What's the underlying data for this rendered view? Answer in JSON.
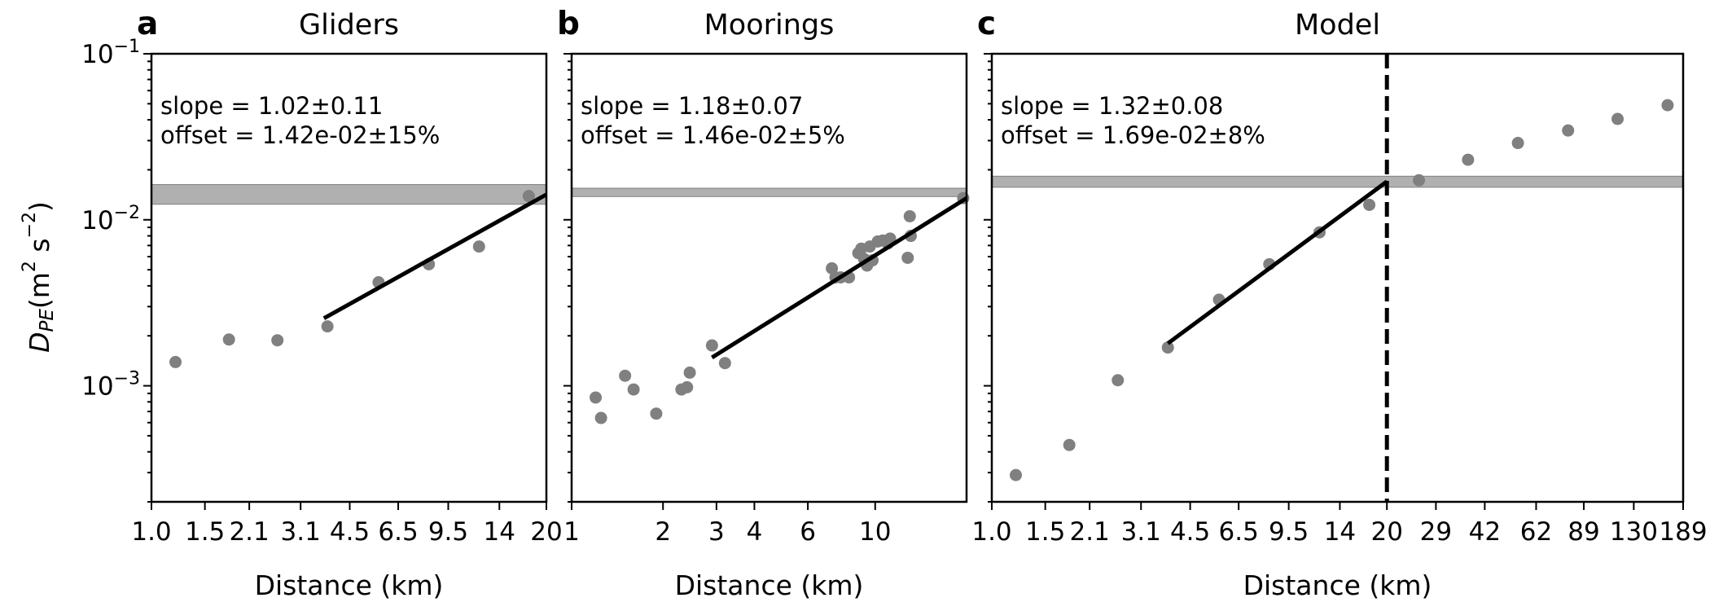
{
  "chart_data": [
    {
      "panel_letter": "a",
      "title": "Gliders",
      "type": "scatter",
      "xscale": "log",
      "yscale": "log",
      "xlim": [
        1.0,
        20
      ],
      "ylim": [
        0.0002,
        0.1
      ],
      "xticks": [
        1.0,
        1.5,
        2.1,
        3.1,
        4.5,
        6.5,
        9.5,
        14,
        20
      ],
      "xticklabels": [
        "1.0",
        "1.5",
        "2.1",
        "3.1",
        "4.5",
        "6.5",
        "9.5",
        "14",
        "20"
      ],
      "xlabel": "Distance (km)",
      "ylabel": "D_PE (m² s⁻²)",
      "annotation": [
        "slope = 1.02±0.11",
        "offset = 1.42e-02±15%"
      ],
      "band": [
        0.0124,
        0.0163
      ],
      "fit_line": [
        [
          3.7,
          0.00255
        ],
        [
          20,
          0.0142
        ]
      ],
      "points": [
        [
          1.2,
          0.00139
        ],
        [
          1.8,
          0.0019
        ],
        [
          2.6,
          0.00188
        ],
        [
          3.8,
          0.00228
        ],
        [
          5.6,
          0.0042
        ],
        [
          8.2,
          0.0054
        ],
        [
          12,
          0.0069
        ],
        [
          17.5,
          0.0139
        ]
      ]
    },
    {
      "panel_letter": "b",
      "title": "Moorings",
      "type": "scatter",
      "xscale": "log",
      "yscale": "log",
      "xlim": [
        1.0,
        20
      ],
      "ylim": [
        0.0002,
        0.1
      ],
      "xticks": [
        1,
        2,
        3,
        4,
        6,
        10
      ],
      "xticklabels": [
        "1",
        "2",
        "3",
        "4",
        "6",
        "10"
      ],
      "xlabel": "Distance (km)",
      "annotation": [
        "slope = 1.18±0.07",
        "offset = 1.46e-02±5%"
      ],
      "band": [
        0.0138,
        0.0155
      ],
      "fit_line": [
        [
          2.9,
          0.00148
        ],
        [
          20,
          0.0135
        ]
      ],
      "points": [
        [
          1.2,
          0.00085
        ],
        [
          1.25,
          0.00064
        ],
        [
          1.5,
          0.00115
        ],
        [
          1.6,
          0.00095
        ],
        [
          1.9,
          0.00068
        ],
        [
          2.3,
          0.00095
        ],
        [
          2.4,
          0.00098
        ],
        [
          2.45,
          0.0012
        ],
        [
          2.9,
          0.00175
        ],
        [
          3.2,
          0.00137
        ],
        [
          7.2,
          0.0051
        ],
        [
          7.4,
          0.0045
        ],
        [
          7.7,
          0.0045
        ],
        [
          8.2,
          0.0045
        ],
        [
          8.8,
          0.0063
        ],
        [
          9.0,
          0.0067
        ],
        [
          9.2,
          0.0058
        ],
        [
          9.4,
          0.0053
        ],
        [
          9.6,
          0.0069
        ],
        [
          9.8,
          0.0057
        ],
        [
          10.2,
          0.0074
        ],
        [
          10.6,
          0.0075
        ],
        [
          11.0,
          0.0072
        ],
        [
          11.2,
          0.0077
        ],
        [
          12.8,
          0.0059
        ],
        [
          13.0,
          0.0105
        ],
        [
          13.1,
          0.008
        ],
        [
          19.5,
          0.0135
        ]
      ]
    },
    {
      "panel_letter": "c",
      "title": "Model",
      "type": "scatter",
      "xscale": "log",
      "yscale": "log",
      "xlim": [
        1.0,
        189
      ],
      "ylim": [
        0.0002,
        0.1
      ],
      "xticks": [
        1.0,
        1.5,
        2.1,
        3.1,
        4.5,
        6.5,
        9.5,
        14,
        20,
        29,
        42,
        62,
        89,
        130,
        189
      ],
      "xticklabels": [
        "1.0",
        "1.5",
        "2.1",
        "3.1",
        "4.5",
        "6.5",
        "9.5",
        "14",
        "20",
        "29",
        "42",
        "62",
        "89",
        "130",
        "189"
      ],
      "xlabel": "Distance (km)",
      "annotation": [
        "slope = 1.32±0.08",
        "offset = 1.69e-02±8%"
      ],
      "band": [
        0.0157,
        0.0183
      ],
      "fit_line": [
        [
          3.8,
          0.0018
        ],
        [
          20,
          0.017
        ]
      ],
      "vline_x": 20,
      "points": [
        [
          1.2,
          0.00029
        ],
        [
          1.8,
          0.00044
        ],
        [
          2.6,
          0.00108
        ],
        [
          3.8,
          0.0017
        ],
        [
          5.6,
          0.0033
        ],
        [
          8.2,
          0.0054
        ],
        [
          12,
          0.0084
        ],
        [
          17.5,
          0.0123
        ],
        [
          25.5,
          0.0173
        ],
        [
          37,
          0.023
        ],
        [
          54,
          0.029
        ],
        [
          79,
          0.0345
        ],
        [
          115,
          0.0405
        ],
        [
          168,
          0.049
        ]
      ]
    }
  ],
  "y_axis": {
    "ticks": [
      0.001,
      0.01,
      0.1
    ],
    "labels": [
      {
        "base": "10",
        "exp": "−3"
      },
      {
        "base": "10",
        "exp": "−2"
      },
      {
        "base": "10",
        "exp": "−1"
      }
    ],
    "ylabel_main": "D",
    "ylabel_sub": "PE",
    "ylabel_units": "(m",
    "ylabel_sup1": "2",
    "ylabel_s": " s",
    "ylabel_sup2": "−2",
    "ylabel_close": ")"
  },
  "style": {
    "point_color": "#808080",
    "line_color": "#000000",
    "band_color": "#b0b0b0",
    "band_edge": "#808080"
  }
}
